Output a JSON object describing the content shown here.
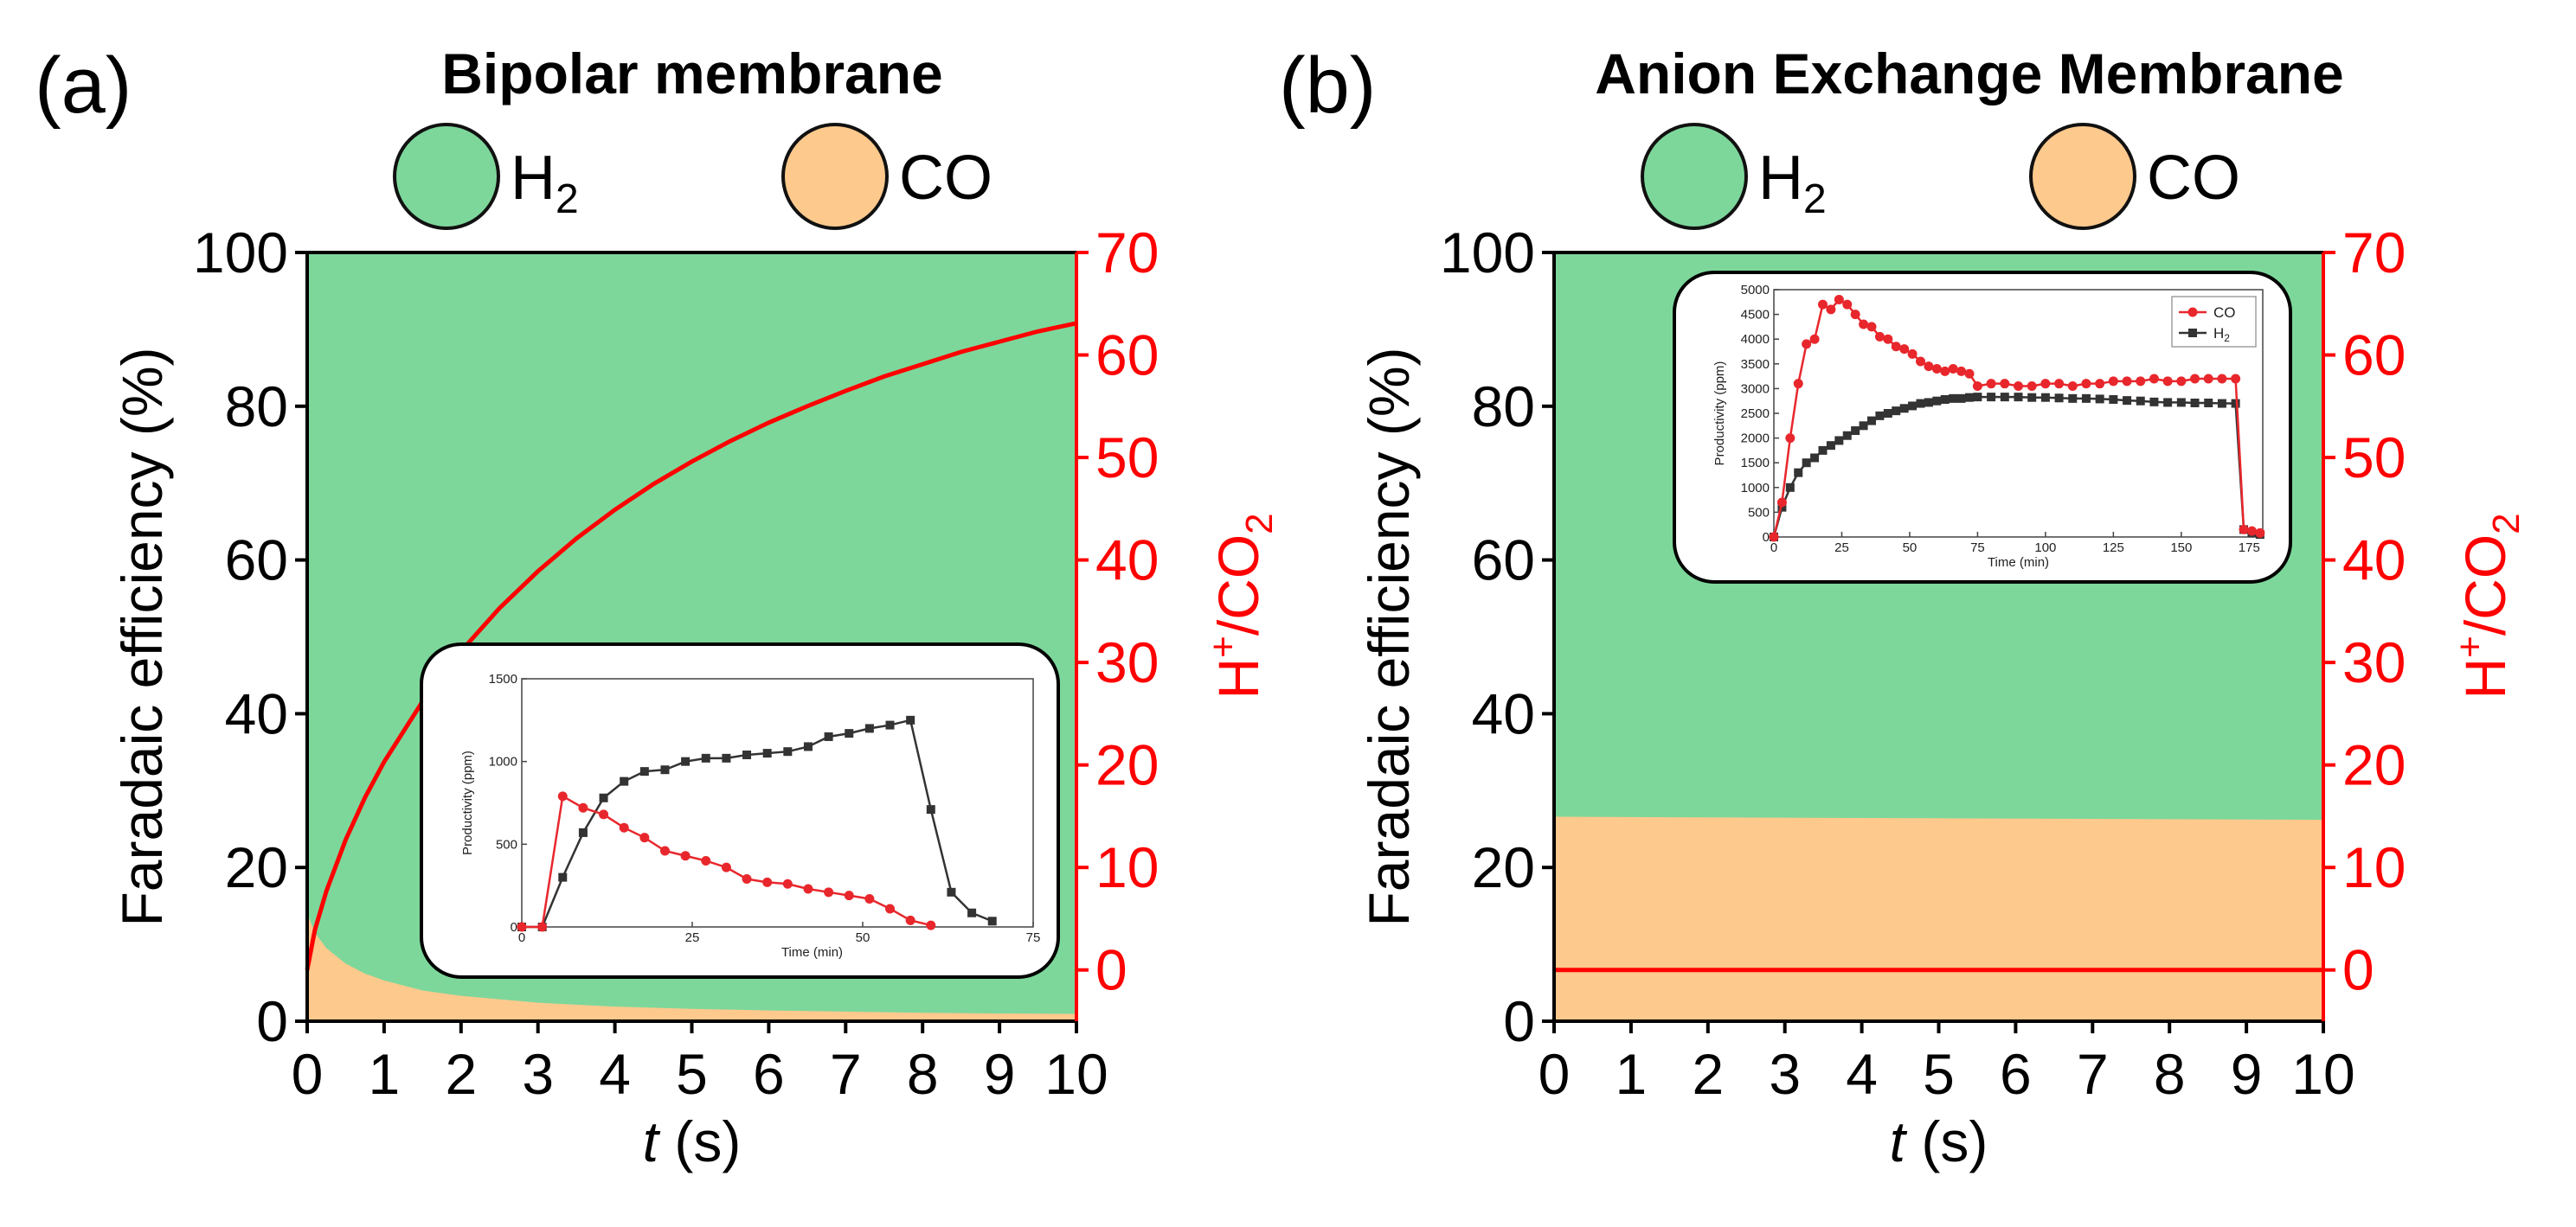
{
  "chart_data": [
    {
      "type": "area",
      "panel_label": "(a)",
      "title": "Bipolar membrane",
      "legend": [
        {
          "name": "H",
          "sub": "2",
          "color": "#7dd79b"
        },
        {
          "name": "CO",
          "sub": "",
          "color": "#fdc98d"
        }
      ],
      "xlabel_italic": "t",
      "xlabel_rest": " (s)",
      "ylabel": "Faradaic efficiency (%)",
      "y2label_parts": [
        "H",
        "+",
        "/CO",
        "2"
      ],
      "xlim": [
        0,
        10
      ],
      "ylim": [
        0,
        100
      ],
      "y2lim": [
        -5,
        70
      ],
      "xticks": [
        "0",
        "1",
        "2",
        "3",
        "4",
        "5",
        "6",
        "7",
        "8",
        "9",
        "10"
      ],
      "yticks": [
        "0",
        "20",
        "40",
        "60",
        "80",
        "100"
      ],
      "y2ticks": [
        "0",
        "10",
        "20",
        "30",
        "40",
        "50",
        "60",
        "70"
      ],
      "co_fe": {
        "x": [
          0,
          0.1,
          0.25,
          0.5,
          0.75,
          1,
          1.5,
          2,
          3,
          4,
          5,
          6,
          7,
          8,
          9,
          10
        ],
        "y": [
          14,
          11.5,
          9.5,
          7.5,
          6.2,
          5.3,
          4.0,
          3.3,
          2.4,
          1.9,
          1.6,
          1.4,
          1.25,
          1.1,
          1.0,
          0.95
        ]
      },
      "h2_fe_top": 100,
      "ratio_line": {
        "x": [
          0,
          0.1,
          0.25,
          0.5,
          0.75,
          1,
          1.5,
          2,
          2.5,
          3,
          3.5,
          4,
          4.5,
          5,
          5.5,
          6,
          6.5,
          7,
          7.5,
          8,
          8.5,
          9,
          9.5,
          10
        ],
        "y": [
          0,
          3.9,
          7.7,
          12.7,
          16.8,
          20.3,
          26.2,
          31.1,
          35.3,
          38.9,
          42.1,
          44.9,
          47.4,
          49.6,
          51.6,
          53.4,
          55.0,
          56.5,
          57.9,
          59.1,
          60.3,
          61.3,
          62.3,
          63.1
        ]
      },
      "inset": {
        "xlabel": "Time (min)",
        "ylabel": "Productivity (ppm)",
        "xlim": [
          0,
          75
        ],
        "ylim": [
          0,
          1500
        ],
        "xticks": [
          "0",
          "25",
          "50",
          "75"
        ],
        "yticks": [
          "0",
          "500",
          "1000",
          "1500"
        ],
        "legend": [],
        "series": [
          {
            "name": "H2",
            "color": "#333333",
            "marker": "square",
            "x": [
              0,
              3,
              6,
              9,
              12,
              15,
              18,
              21,
              24,
              27,
              30,
              33,
              36,
              39,
              42,
              45,
              48,
              51,
              54,
              57,
              60,
              63,
              66,
              69
            ],
            "y": [
              0,
              0,
              300,
              570,
              780,
              880,
              940,
              950,
              1000,
              1020,
              1020,
              1040,
              1050,
              1060,
              1090,
              1150,
              1170,
              1200,
              1220,
              1250,
              710,
              210,
              85,
              35
            ]
          },
          {
            "name": "CO",
            "color": "#e8272c",
            "marker": "circle",
            "x": [
              0,
              3,
              6,
              9,
              12,
              15,
              18,
              21,
              24,
              27,
              30,
              33,
              36,
              39,
              42,
              45,
              48,
              51,
              54,
              57,
              60
            ],
            "y": [
              0,
              0,
              790,
              720,
              680,
              600,
              540,
              460,
              430,
              400,
              360,
              290,
              270,
              260,
              230,
              210,
              190,
              170,
              110,
              40,
              10
            ]
          }
        ]
      }
    },
    {
      "type": "area",
      "panel_label": "(b)",
      "title": "Anion Exchange Membrane",
      "legend": [
        {
          "name": "H",
          "sub": "2",
          "color": "#7dd79b"
        },
        {
          "name": "CO",
          "sub": "",
          "color": "#fdc98d"
        }
      ],
      "xlabel_italic": "t",
      "xlabel_rest": " (s)",
      "ylabel": "Faradaic efficiency (%)",
      "y2label_parts": [
        "H",
        "+",
        "/CO",
        "2"
      ],
      "xlim": [
        0,
        10
      ],
      "ylim": [
        0,
        100
      ],
      "y2lim": [
        -5,
        70
      ],
      "xticks": [
        "0",
        "1",
        "2",
        "3",
        "4",
        "5",
        "6",
        "7",
        "8",
        "9",
        "10"
      ],
      "yticks": [
        "0",
        "20",
        "40",
        "60",
        "80",
        "100"
      ],
      "y2ticks": [
        "0",
        "10",
        "20",
        "30",
        "40",
        "50",
        "60",
        "70"
      ],
      "co_fe": {
        "x": [
          0,
          10
        ],
        "y": [
          26.6,
          26.2
        ]
      },
      "h2_fe_top": 100,
      "ratio_line": {
        "x": [
          0,
          10
        ],
        "y": [
          0,
          0
        ]
      },
      "inset": {
        "xlabel": "Time (min)",
        "ylabel": "Productivity (ppm)",
        "xlim": [
          0,
          180
        ],
        "ylim": [
          0,
          5000
        ],
        "xticks": [
          "0",
          "25",
          "50",
          "75",
          "100",
          "125",
          "150",
          "175"
        ],
        "yticks": [
          "0",
          "500",
          "1000",
          "1500",
          "2000",
          "2500",
          "3000",
          "3500",
          "4000",
          "4500",
          "5000"
        ],
        "legend": [
          {
            "name": "CO",
            "sub": "",
            "color": "#e8272c",
            "marker": "circle"
          },
          {
            "name": "H",
            "sub": "2",
            "color": "#333333",
            "marker": "square"
          }
        ],
        "series": [
          {
            "name": "H2",
            "color": "#333333",
            "marker": "square",
            "x": [
              0,
              3,
              6,
              9,
              12,
              15,
              18,
              21,
              24,
              27,
              30,
              33,
              36,
              39,
              42,
              45,
              48,
              51,
              54,
              57,
              60,
              63,
              66,
              69,
              72,
              75,
              80,
              85,
              90,
              95,
              100,
              105,
              110,
              115,
              120,
              125,
              130,
              135,
              140,
              145,
              150,
              155,
              160,
              165,
              170,
              173,
              176,
              179
            ],
            "y": [
              0,
              600,
              1000,
              1300,
              1500,
              1600,
              1750,
              1850,
              1950,
              2050,
              2150,
              2250,
              2350,
              2450,
              2500,
              2550,
              2600,
              2650,
              2700,
              2720,
              2750,
              2780,
              2800,
              2800,
              2820,
              2830,
              2830,
              2830,
              2830,
              2820,
              2820,
              2810,
              2800,
              2800,
              2790,
              2780,
              2760,
              2750,
              2730,
              2720,
              2720,
              2710,
              2710,
              2700,
              2700,
              150,
              80,
              50
            ]
          },
          {
            "name": "CO",
            "color": "#e8272c",
            "marker": "circle",
            "x": [
              0,
              3,
              6,
              9,
              12,
              15,
              18,
              21,
              24,
              27,
              30,
              33,
              36,
              39,
              42,
              45,
              48,
              51,
              54,
              57,
              60,
              63,
              66,
              69,
              72,
              75,
              80,
              85,
              90,
              95,
              100,
              105,
              110,
              115,
              120,
              125,
              130,
              135,
              140,
              145,
              150,
              155,
              160,
              165,
              170,
              173,
              176,
              179
            ],
            "y": [
              0,
              700,
              2000,
              3100,
              3900,
              4000,
              4700,
              4600,
              4800,
              4700,
              4500,
              4300,
              4250,
              4050,
              4000,
              3850,
              3800,
              3700,
              3550,
              3450,
              3400,
              3350,
              3400,
              3350,
              3300,
              3050,
              3100,
              3100,
              3050,
              3050,
              3100,
              3100,
              3050,
              3100,
              3100,
              3150,
              3150,
              3150,
              3200,
              3150,
              3150,
              3200,
              3200,
              3200,
              3200,
              150,
              120,
              80
            ]
          }
        ]
      }
    }
  ]
}
